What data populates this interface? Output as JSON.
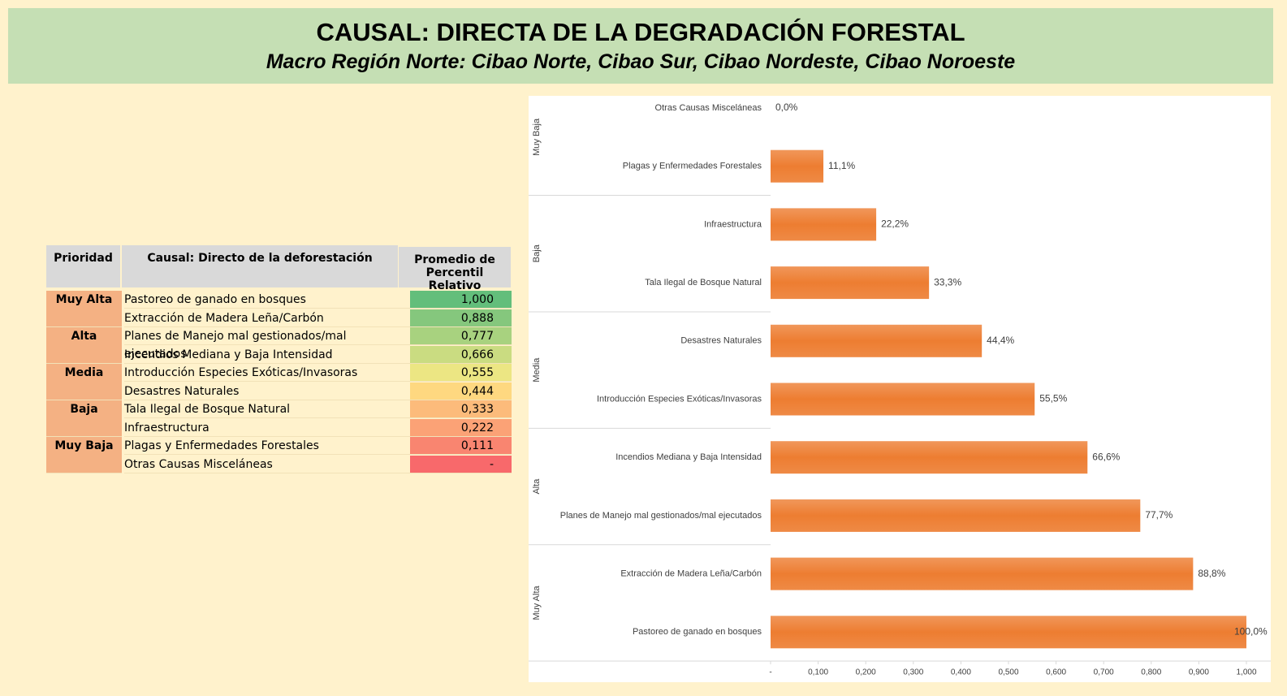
{
  "header": {
    "title": "CAUSAL: DIRECTA DE LA DEGRADACIÓN FORESTAL",
    "subtitle": "Macro Región Norte: Cibao Norte, Cibao Sur, Cibao Nordeste, Cibao Noroeste"
  },
  "table": {
    "columns": [
      "Prioridad",
      "Causal: Directo de la deforestación",
      "Promedio de Percentil Relativo"
    ],
    "groups": [
      {
        "priority": "Muy Alta",
        "rows": [
          {
            "causal": "Pastoreo de ganado en bosques",
            "value": "1,000",
            "color": "#63be7b"
          },
          {
            "causal": "Extracción de Madera Leña/Carbón",
            "value": "0,888",
            "color": "#85c77d"
          }
        ]
      },
      {
        "priority": "Alta",
        "rows": [
          {
            "causal": "Planes de Manejo mal gestionados/mal ejecutados",
            "value": "0,777",
            "color": "#a8d27f"
          },
          {
            "causal": "Incendios Mediana y Baja Intensidad",
            "value": "0,666",
            "color": "#cadc81"
          }
        ]
      },
      {
        "priority": "Media",
        "rows": [
          {
            "causal": "Introducción Especies Exóticas/Invasoras",
            "value": "0,555",
            "color": "#ece683"
          },
          {
            "causal": "Desastres Naturales",
            "value": "0,444",
            "color": "#fed880"
          }
        ]
      },
      {
        "priority": "Baja",
        "rows": [
          {
            "causal": "Tala Ilegal de Bosque Natural",
            "value": "0,333",
            "color": "#fcbb7b"
          },
          {
            "causal": "Infraestructura",
            "value": "0,222",
            "color": "#fba276"
          }
        ]
      },
      {
        "priority": "Muy Baja",
        "rows": [
          {
            "causal": "Plagas y Enfermedades Forestales",
            "value": "0,111",
            "color": "#f98570"
          },
          {
            "causal": "Otras Causas Misceláneas",
            "value": "-",
            "color": "#f8696b"
          }
        ]
      }
    ]
  },
  "chart_data": {
    "type": "hbar",
    "categories": [
      "Otras Causas Misceláneas",
      "Plagas y Enfermedades Forestales",
      "Infraestructura",
      "Tala Ilegal de Bosque Natural",
      "Desastres Naturales",
      "Introducción Especies Exóticas/Invasoras",
      "Incendios Mediana y Baja Intensidad",
      "Planes de Manejo mal gestionados/mal ejecutados",
      "Extracción de Madera Leña/Carbón",
      "Pastoreo de ganado en bosques"
    ],
    "values": [
      0,
      0.111,
      0.222,
      0.333,
      0.444,
      0.555,
      0.666,
      0.777,
      0.888,
      1.0
    ],
    "value_labels": [
      "0,0%",
      "11,1%",
      "22,2%",
      "33,3%",
      "44,4%",
      "55,5%",
      "66,6%",
      "77,7%",
      "88,8%",
      "100,0%"
    ],
    "groups": [
      "Muy Baja",
      "Baja",
      "Media",
      "Alta",
      "Muy Alta"
    ],
    "color": "#ed7d31",
    "xlim": [
      0,
      1.0
    ],
    "xticks": [
      {
        "value": 0,
        "label": "-"
      },
      {
        "value": 0.1,
        "label": "0,100"
      },
      {
        "value": 0.2,
        "label": "0,200"
      },
      {
        "value": 0.3,
        "label": "0,300"
      },
      {
        "value": 0.4,
        "label": "0,400"
      },
      {
        "value": 0.5,
        "label": "0,500"
      },
      {
        "value": 0.6,
        "label": "0,600"
      },
      {
        "value": 0.7,
        "label": "0,700"
      },
      {
        "value": 0.8,
        "label": "0,800"
      },
      {
        "value": 0.9,
        "label": "0,900"
      },
      {
        "value": 1.0,
        "label": "1,000"
      }
    ]
  }
}
